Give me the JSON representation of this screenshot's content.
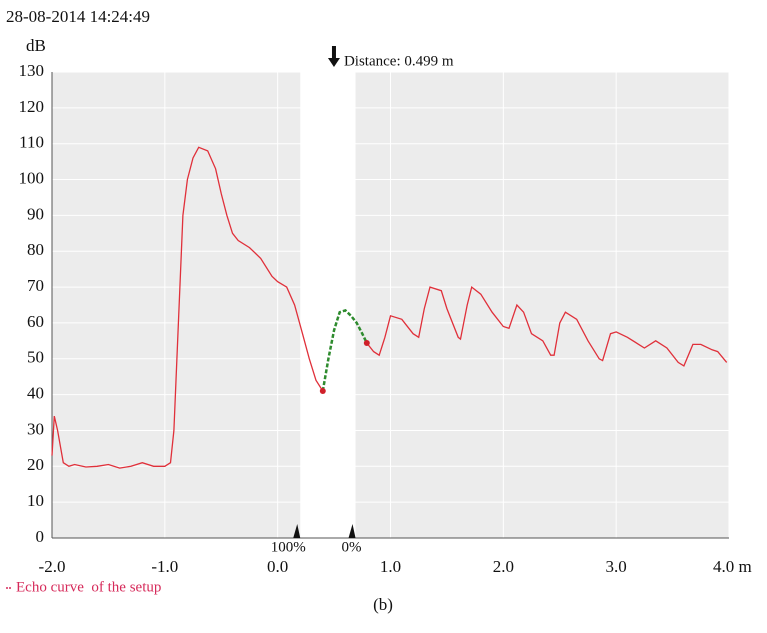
{
  "chart_data": {
    "type": "line",
    "timestamp": "28-08-2014 14:24:49",
    "y_label": "dB",
    "xlim": [
      -2,
      4
    ],
    "ylim": [
      0,
      130
    ],
    "xticks": [
      {
        "value": -2,
        "label": "-2.0"
      },
      {
        "value": -1,
        "label": "-1.0"
      },
      {
        "value": 0,
        "label": "0.0"
      },
      {
        "value": 1,
        "label": "1.0"
      },
      {
        "value": 2,
        "label": "2.0"
      },
      {
        "value": 3,
        "label": "3.0"
      },
      {
        "value": 4,
        "label": "4.0 m"
      }
    ],
    "yticks": [
      0,
      10,
      20,
      30,
      40,
      50,
      60,
      70,
      80,
      90,
      100,
      110,
      120,
      130
    ],
    "grid": true,
    "band": {
      "from": 0.2,
      "to": 0.69,
      "labels": [
        "100%",
        "0%"
      ]
    },
    "annotation": {
      "text": "Distance: 0.499 m",
      "x": 0.499
    },
    "series": [
      {
        "name": "Echo curve  of the setup",
        "color": "#e0303a",
        "x": [
          -2.0,
          -1.98,
          -1.95,
          -1.9,
          -1.85,
          -1.8,
          -1.7,
          -1.6,
          -1.5,
          -1.4,
          -1.3,
          -1.2,
          -1.1,
          -1.0,
          -0.95,
          -0.92,
          -0.88,
          -0.84,
          -0.8,
          -0.75,
          -0.7,
          -0.62,
          -0.55,
          -0.5,
          -0.45,
          -0.4,
          -0.35,
          -0.25,
          -0.15,
          -0.05,
          0.0,
          0.08,
          0.15,
          0.22,
          0.28,
          0.34,
          0.38,
          0.4,
          0.6,
          0.79,
          0.85,
          0.9,
          0.95,
          1.0,
          1.1,
          1.2,
          1.25,
          1.3,
          1.35,
          1.45,
          1.5,
          1.6,
          1.62,
          1.68,
          1.72,
          1.8,
          1.9,
          2.0,
          2.05,
          2.12,
          2.18,
          2.25,
          2.35,
          2.42,
          2.45,
          2.5,
          2.55,
          2.65,
          2.75,
          2.85,
          2.88,
          2.95,
          3.0,
          3.1,
          3.2,
          3.25,
          3.35,
          3.45,
          3.55,
          3.6,
          3.68,
          3.75,
          3.85,
          3.9,
          3.98
        ],
        "values": [
          23,
          34,
          30,
          21,
          20,
          20.5,
          19.8,
          20,
          20.5,
          19.5,
          20,
          21,
          20,
          20,
          21,
          30,
          60,
          90,
          100,
          106,
          109,
          108,
          103,
          96,
          90,
          85,
          83,
          81,
          78,
          73,
          71.5,
          70,
          65,
          57,
          50,
          44,
          42,
          41,
          null,
          54.4,
          52,
          51,
          56,
          62,
          61,
          57,
          56,
          64,
          70,
          69,
          64,
          56,
          55.5,
          65,
          70,
          68,
          63,
          59,
          58.5,
          65,
          63,
          57,
          55,
          51,
          51,
          60,
          63,
          61,
          55,
          50,
          49.5,
          57,
          57.5,
          56,
          54,
          53,
          55,
          53,
          49,
          48,
          54,
          54,
          52.5,
          52,
          49
        ]
      },
      {
        "color": "#2e8b2e",
        "dashed": true,
        "x": [
          0.4,
          0.45,
          0.5,
          0.55,
          0.6,
          0.65,
          0.7,
          0.75,
          0.79
        ],
        "values": [
          41,
          50,
          58,
          63,
          63.5,
          62,
          60,
          57,
          54.4
        ]
      }
    ],
    "caption": "(b)"
  }
}
